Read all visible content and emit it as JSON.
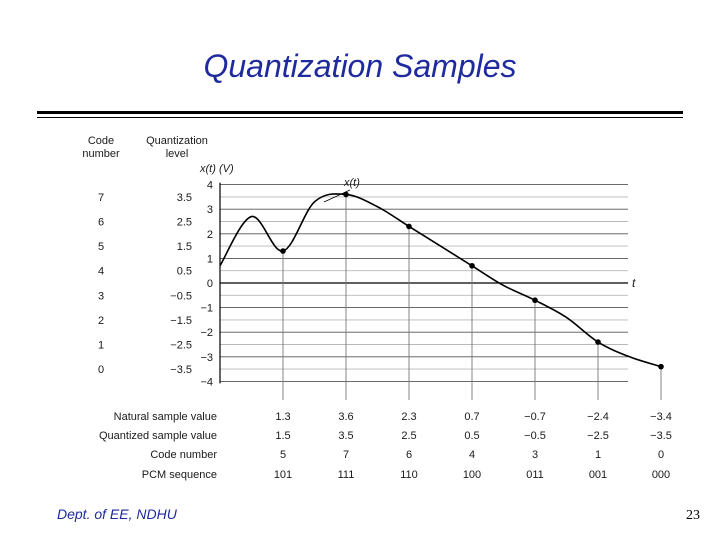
{
  "title": "Quantization Samples",
  "footer": {
    "dept": "Dept. of EE, NDHU",
    "page_number": "23"
  },
  "chart_data": {
    "type": "line",
    "ylabel": "x(t) (V)",
    "xlabel": "t",
    "curve_label": "x(t)",
    "ylim": [
      -4,
      4
    ],
    "y_ticks": [
      "4",
      "3",
      "2",
      "1",
      "0",
      "−1",
      "−2",
      "−3",
      "−4"
    ],
    "grid": true,
    "column_headers": {
      "code": "Code\nnumber",
      "level": "Quantization\nlevel"
    },
    "levels": [
      {
        "code": "7",
        "level": "3.5",
        "value": 3.5
      },
      {
        "code": "6",
        "level": "2.5",
        "value": 2.5
      },
      {
        "code": "5",
        "level": "1.5",
        "value": 1.5
      },
      {
        "code": "4",
        "level": "0.5",
        "value": 0.5
      },
      {
        "code": "3",
        "level": "−0.5",
        "value": -0.5
      },
      {
        "code": "2",
        "level": "−1.5",
        "value": -1.5
      },
      {
        "code": "1",
        "level": "−2.5",
        "value": -2.5
      },
      {
        "code": "0",
        "level": "−3.5",
        "value": -3.5
      }
    ],
    "samples": [
      {
        "t": 1,
        "natural": 1.3,
        "natural_label": "1.3",
        "quantized": "1.5",
        "code": "5",
        "pcm": "101"
      },
      {
        "t": 2,
        "natural": 3.6,
        "natural_label": "3.6",
        "quantized": "3.5",
        "code": "7",
        "pcm": "111"
      },
      {
        "t": 3,
        "natural": 2.3,
        "natural_label": "2.3",
        "quantized": "2.5",
        "code": "6",
        "pcm": "110"
      },
      {
        "t": 4,
        "natural": 0.7,
        "natural_label": "0.7",
        "quantized": "0.5",
        "code": "4",
        "pcm": "100"
      },
      {
        "t": 5,
        "natural": -0.7,
        "natural_label": "−0.7",
        "quantized": "−0.5",
        "code": "3",
        "pcm": "011"
      },
      {
        "t": 6,
        "natural": -2.4,
        "natural_label": "−2.4",
        "quantized": "−2.5",
        "code": "1",
        "pcm": "001"
      },
      {
        "t": 7,
        "natural": -3.4,
        "natural_label": "−3.4",
        "quantized": "−3.5",
        "code": "0",
        "pcm": "000"
      }
    ],
    "curve": [
      {
        "t": 0,
        "v": 0.7
      },
      {
        "t": 0.5,
        "v": 2.7
      },
      {
        "t": 1,
        "v": 1.3
      },
      {
        "t": 1.5,
        "v": 3.3
      },
      {
        "t": 2,
        "v": 3.6
      },
      {
        "t": 2.5,
        "v": 3.1
      },
      {
        "t": 3,
        "v": 2.3
      },
      {
        "t": 3.5,
        "v": 1.5
      },
      {
        "t": 4,
        "v": 0.7
      },
      {
        "t": 4.5,
        "v": -0.1
      },
      {
        "t": 5,
        "v": -0.7
      },
      {
        "t": 5.5,
        "v": -1.4
      },
      {
        "t": 6,
        "v": -2.4
      },
      {
        "t": 6.5,
        "v": -3.0
      },
      {
        "t": 7,
        "v": -3.4
      }
    ],
    "row_labels": {
      "natural": "Natural sample value",
      "quantized": "Quantized sample value",
      "code": "Code number",
      "pcm": "PCM sequence"
    }
  }
}
